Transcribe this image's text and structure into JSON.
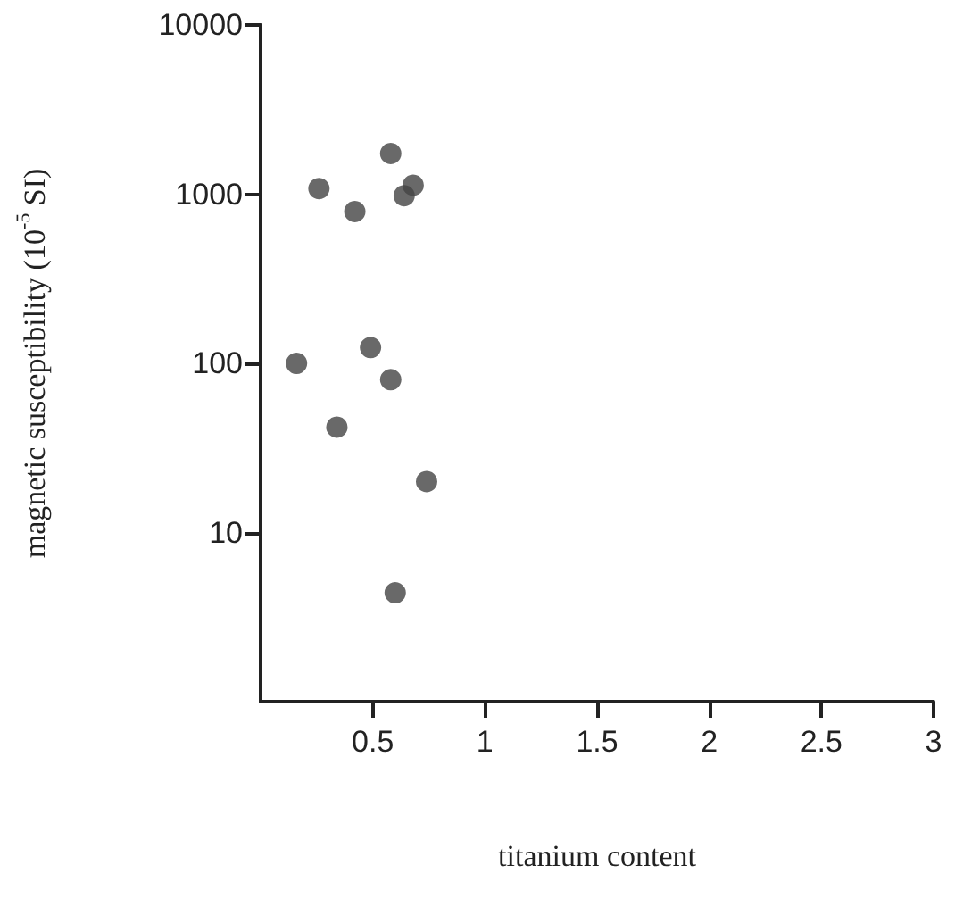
{
  "chart_data": {
    "type": "scatter",
    "xlabel": "titanium content",
    "ylabel": "magnetic susceptibility (10$^{-5}$ SI)",
    "x": [
      0.58,
      0.26,
      0.68,
      0.64,
      0.42,
      0.16,
      0.49,
      0.58,
      0.34,
      0.74,
      0.6
    ],
    "series": [
      {
        "color": "#444444",
        "values": [
          1740,
          1080,
          1130,
          980,
          790,
          100,
          124,
          80,
          42,
          20,
          4.4
        ]
      }
    ],
    "xlim": [
      0,
      3
    ],
    "xticks": [
      0.5,
      1,
      1.5,
      2,
      2.5,
      3
    ],
    "ylim": [
      1,
      10000
    ],
    "yticks": [
      10,
      100,
      1000,
      10000
    ],
    "log": "y",
    "marker": "circle"
  }
}
